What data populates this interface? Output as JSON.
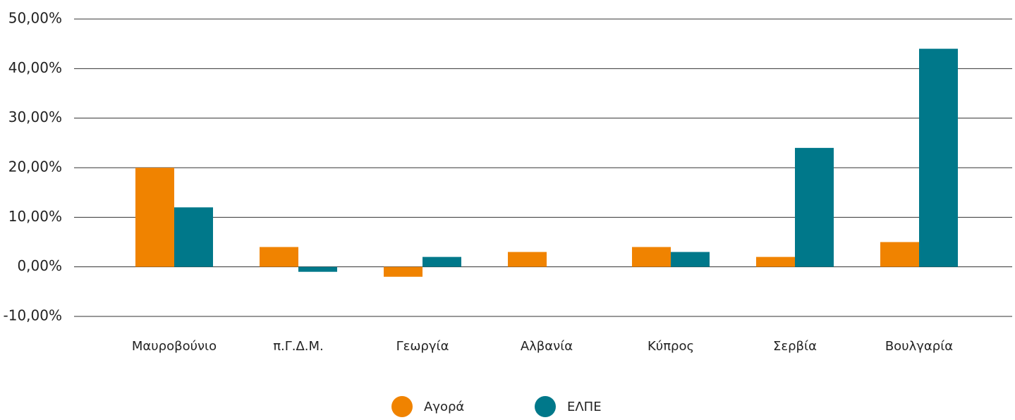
{
  "chart_data": {
    "type": "bar",
    "categories": [
      "Μαυροβούνιο",
      "π.Γ.Δ.Μ.",
      "Γεωργία",
      "Αλβανία",
      "Κύπρος",
      "Σερβία",
      "Βουλγαρία"
    ],
    "series": [
      {
        "name": "Αγορά",
        "color": "#f08300",
        "values": [
          20,
          4,
          -2,
          3,
          4,
          2,
          5
        ]
      },
      {
        "name": "ΕΛΠΕ",
        "color": "#00788a",
        "values": [
          12,
          -1,
          2,
          0,
          3,
          24,
          44
        ]
      }
    ],
    "ylim": [
      -10,
      50
    ],
    "yticks": [
      {
        "value": -10,
        "label": "-10,00%"
      },
      {
        "value": 0,
        "label": "0,00%"
      },
      {
        "value": 10,
        "label": "10,00%"
      },
      {
        "value": 20,
        "label": "20,00%"
      },
      {
        "value": 30,
        "label": "30,00%"
      },
      {
        "value": 40,
        "label": "40,00%"
      },
      {
        "value": 50,
        "label": "50,00%"
      }
    ],
    "grid": true,
    "legend": "bottom"
  }
}
